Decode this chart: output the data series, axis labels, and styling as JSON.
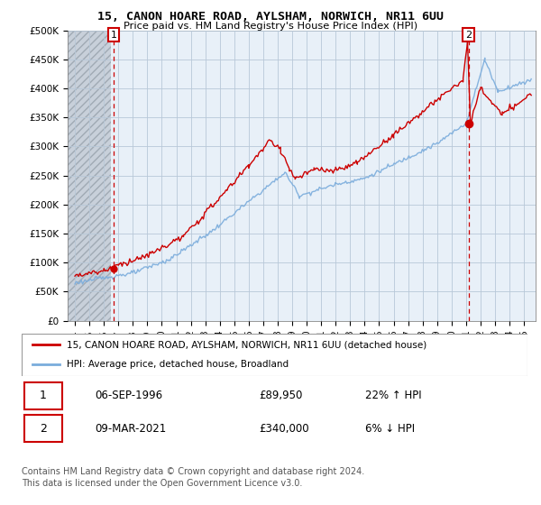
{
  "title": "15, CANON HOARE ROAD, AYLSHAM, NORWICH, NR11 6UU",
  "subtitle": "Price paid vs. HM Land Registry's House Price Index (HPI)",
  "ylim": [
    0,
    500000
  ],
  "yticks": [
    0,
    50000,
    100000,
    150000,
    200000,
    250000,
    300000,
    350000,
    400000,
    450000,
    500000
  ],
  "ytick_labels": [
    "£0",
    "£50K",
    "£100K",
    "£150K",
    "£200K",
    "£250K",
    "£300K",
    "£350K",
    "£400K",
    "£450K",
    "£500K"
  ],
  "xlim_start": 1993.5,
  "xlim_end": 2025.8,
  "hatch_end": 1996.5,
  "sale1_date": 1996.68,
  "sale1_price": 89950,
  "sale1_label": "1",
  "sale2_date": 2021.18,
  "sale2_price": 340000,
  "sale2_label": "2",
  "legend_line1": "15, CANON HOARE ROAD, AYLSHAM, NORWICH, NR11 6UU (detached house)",
  "legend_line2": "HPI: Average price, detached house, Broadland",
  "table_row1": [
    "1",
    "06-SEP-1996",
    "£89,950",
    "22% ↑ HPI"
  ],
  "table_row2": [
    "2",
    "09-MAR-2021",
    "£340,000",
    "6% ↓ HPI"
  ],
  "footer": "Contains HM Land Registry data © Crown copyright and database right 2024.\nThis data is licensed under the Open Government Licence v3.0.",
  "line_color_red": "#cc0000",
  "line_color_blue": "#7aacdc",
  "annotation_box_color": "#cc0000",
  "chart_bg": "#e8f0f8",
  "hatch_color": "#c8d0d8",
  "grid_color": "#b8c8d8"
}
